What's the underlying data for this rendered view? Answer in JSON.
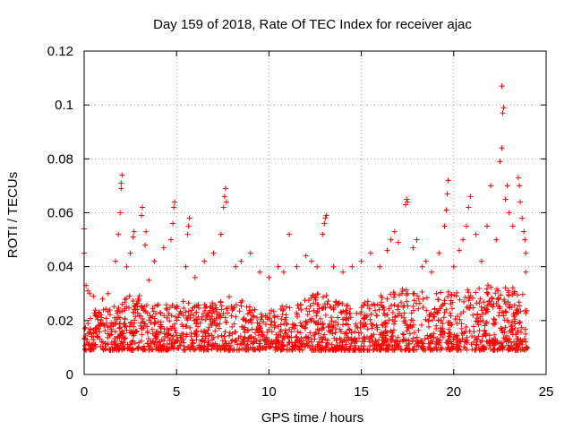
{
  "chart_data": {
    "type": "scatter",
    "title": "Day 159 of 2018, Rate Of TEC Index for receiver ajac",
    "xlabel": "GPS time / hours",
    "ylabel": "ROTI / TECUs",
    "xlim": [
      0,
      25
    ],
    "ylim": [
      0,
      0.12
    ],
    "x_ticks": [
      "0",
      "5",
      "10",
      "15",
      "20",
      "25"
    ],
    "y_ticks": [
      "0",
      "0.02",
      "0.04",
      "0.06",
      "0.08",
      "0.1",
      "0.12"
    ],
    "grid": true,
    "legend": "none",
    "marker": "+",
    "color": "#ff0000",
    "series": [
      {
        "points": [
          [
            0.0,
            0.054
          ],
          [
            0.0,
            0.045
          ],
          [
            0.1,
            0.033
          ],
          [
            0.2,
            0.031
          ],
          [
            0.3,
            0.03
          ],
          [
            0.5,
            0.029
          ],
          [
            1.0,
            0.028
          ],
          [
            1.3,
            0.03
          ],
          [
            1.7,
            0.042
          ],
          [
            1.85,
            0.052
          ],
          [
            1.95,
            0.06
          ],
          [
            2.0,
            0.069
          ],
          [
            2.0,
            0.071
          ],
          [
            2.05,
            0.074
          ],
          [
            2.3,
            0.04
          ],
          [
            2.5,
            0.045
          ],
          [
            2.65,
            0.051
          ],
          [
            2.7,
            0.053
          ],
          [
            3.1,
            0.059
          ],
          [
            3.15,
            0.062
          ],
          [
            3.3,
            0.048
          ],
          [
            3.35,
            0.053
          ],
          [
            3.5,
            0.035
          ],
          [
            3.8,
            0.042
          ],
          [
            4.3,
            0.047
          ],
          [
            4.7,
            0.05
          ],
          [
            4.8,
            0.056
          ],
          [
            4.85,
            0.062
          ],
          [
            4.9,
            0.064
          ],
          [
            5.5,
            0.04
          ],
          [
            5.6,
            0.052
          ],
          [
            5.65,
            0.055
          ],
          [
            5.7,
            0.058
          ],
          [
            6.0,
            0.036
          ],
          [
            6.5,
            0.042
          ],
          [
            7.0,
            0.045
          ],
          [
            7.4,
            0.052
          ],
          [
            7.55,
            0.062
          ],
          [
            7.6,
            0.066
          ],
          [
            7.65,
            0.069
          ],
          [
            7.7,
            0.064
          ],
          [
            8.2,
            0.04
          ],
          [
            8.5,
            0.042
          ],
          [
            9.0,
            0.045
          ],
          [
            9.5,
            0.038
          ],
          [
            10.0,
            0.036
          ],
          [
            10.5,
            0.04
          ],
          [
            10.8,
            0.038
          ],
          [
            11.1,
            0.052
          ],
          [
            11.5,
            0.04
          ],
          [
            12.0,
            0.044
          ],
          [
            12.3,
            0.042
          ],
          [
            12.6,
            0.04
          ],
          [
            12.9,
            0.052
          ],
          [
            13.0,
            0.056
          ],
          [
            13.05,
            0.058
          ],
          [
            13.1,
            0.059
          ],
          [
            13.5,
            0.04
          ],
          [
            14.0,
            0.038
          ],
          [
            14.5,
            0.04
          ],
          [
            15.0,
            0.042
          ],
          [
            15.5,
            0.045
          ],
          [
            16.0,
            0.04
          ],
          [
            16.4,
            0.046
          ],
          [
            16.6,
            0.05
          ],
          [
            16.8,
            0.053
          ],
          [
            17.0,
            0.049
          ],
          [
            17.4,
            0.063
          ],
          [
            17.45,
            0.065
          ],
          [
            17.5,
            0.064
          ],
          [
            17.8,
            0.047
          ],
          [
            18.0,
            0.05
          ],
          [
            18.3,
            0.04
          ],
          [
            18.5,
            0.042
          ],
          [
            18.8,
            0.038
          ],
          [
            19.2,
            0.045
          ],
          [
            19.5,
            0.055
          ],
          [
            19.6,
            0.061
          ],
          [
            19.65,
            0.067
          ],
          [
            19.7,
            0.072
          ],
          [
            20.0,
            0.04
          ],
          [
            20.3,
            0.046
          ],
          [
            20.5,
            0.05
          ],
          [
            20.7,
            0.055
          ],
          [
            20.8,
            0.062
          ],
          [
            20.9,
            0.066
          ],
          [
            21.2,
            0.052
          ],
          [
            21.5,
            0.042
          ],
          [
            21.8,
            0.055
          ],
          [
            22.0,
            0.07
          ],
          [
            22.3,
            0.05
          ],
          [
            22.5,
            0.079
          ],
          [
            22.6,
            0.084
          ],
          [
            22.65,
            0.097
          ],
          [
            22.7,
            0.099
          ],
          [
            22.6,
            0.107
          ],
          [
            22.8,
            0.065
          ],
          [
            22.9,
            0.07
          ],
          [
            23.0,
            0.06
          ],
          [
            23.2,
            0.055
          ],
          [
            23.5,
            0.073
          ],
          [
            23.55,
            0.07
          ],
          [
            23.6,
            0.064
          ],
          [
            23.7,
            0.058
          ],
          [
            23.8,
            0.053
          ],
          [
            23.85,
            0.05
          ],
          [
            23.9,
            0.045
          ],
          [
            23.9,
            0.038
          ]
        ],
        "dense_band": [
          [
            0,
            0.026
          ],
          [
            0.5,
            0.027
          ],
          [
            1,
            0.024
          ],
          [
            1.5,
            0.026
          ],
          [
            2,
            0.028
          ],
          [
            2.5,
            0.03
          ],
          [
            3,
            0.03
          ],
          [
            3.5,
            0.028
          ],
          [
            4,
            0.026
          ],
          [
            4.5,
            0.026
          ],
          [
            5,
            0.026
          ],
          [
            5.5,
            0.028
          ],
          [
            6,
            0.027
          ],
          [
            6.5,
            0.026
          ],
          [
            7,
            0.027
          ],
          [
            7.5,
            0.029
          ],
          [
            8,
            0.03
          ],
          [
            8.5,
            0.028
          ],
          [
            9,
            0.026
          ],
          [
            9.5,
            0.024
          ],
          [
            10,
            0.024
          ],
          [
            10.5,
            0.025
          ],
          [
            11,
            0.026
          ],
          [
            11.5,
            0.027
          ],
          [
            12,
            0.028
          ],
          [
            12.5,
            0.03
          ],
          [
            13,
            0.03
          ],
          [
            13.5,
            0.028
          ],
          [
            14,
            0.027
          ],
          [
            14.5,
            0.026
          ],
          [
            15,
            0.026
          ],
          [
            15.5,
            0.028
          ],
          [
            16,
            0.029
          ],
          [
            16.5,
            0.031
          ],
          [
            17,
            0.032
          ],
          [
            17.5,
            0.032
          ],
          [
            18,
            0.032
          ],
          [
            18.5,
            0.03
          ],
          [
            19,
            0.03
          ],
          [
            19.5,
            0.031
          ],
          [
            20,
            0.031
          ],
          [
            20.5,
            0.031
          ],
          [
            21,
            0.032
          ],
          [
            21.5,
            0.032
          ],
          [
            22,
            0.034
          ],
          [
            22.5,
            0.034
          ],
          [
            23,
            0.033
          ],
          [
            23.5,
            0.032
          ],
          [
            24,
            0.03
          ]
        ],
        "band_floor": 0.005
      }
    ]
  }
}
